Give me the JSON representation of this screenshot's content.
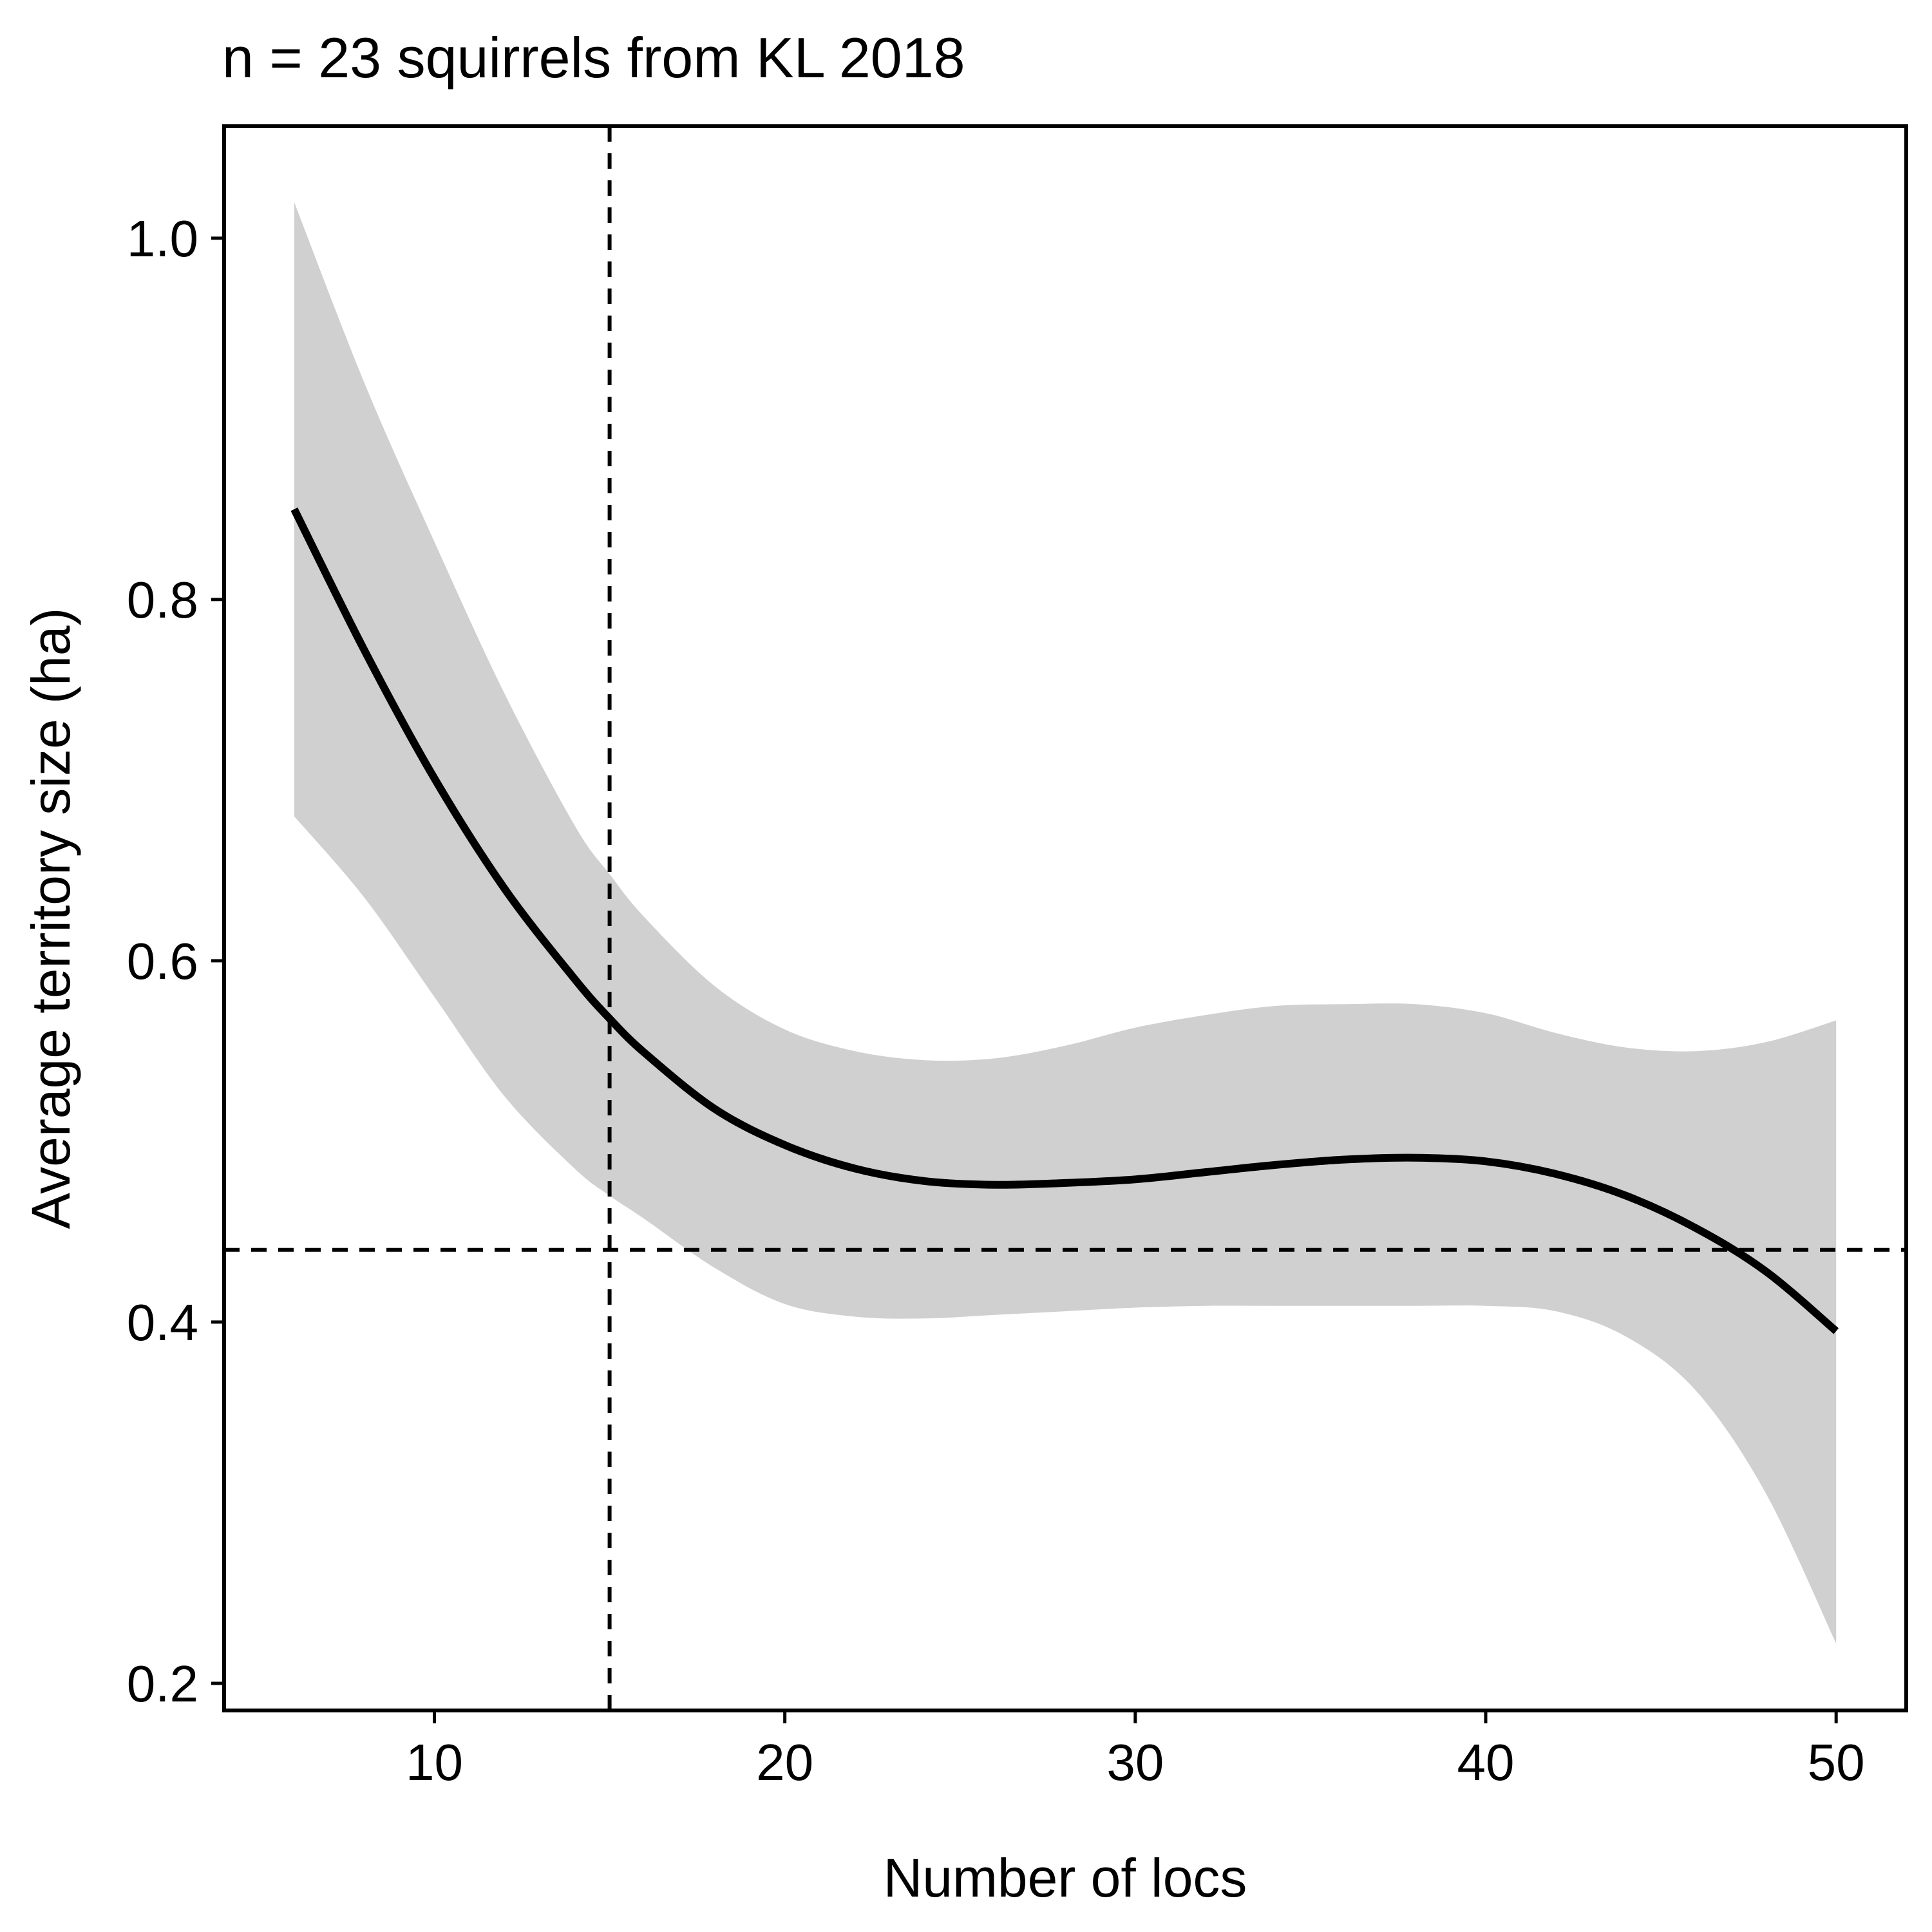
{
  "chart_data": {
    "type": "line",
    "title": "n = 23 squirrels from KL 2018",
    "xlabel": "Number of locs",
    "ylabel": "Average territory size (ha)",
    "xlim": [
      4,
      52
    ],
    "ylim": [
      0.185,
      1.062
    ],
    "x_ticks": [
      10,
      20,
      30,
      40,
      50
    ],
    "y_ticks": [
      0.2,
      0.4,
      0.6,
      0.8,
      1.0
    ],
    "x_tick_labels": [
      "10",
      "20",
      "30",
      "40",
      "50"
    ],
    "y_tick_labels": [
      "0.2",
      "0.4",
      "0.6",
      "0.8",
      "1.0"
    ],
    "grid": false,
    "legend": "none",
    "series": [
      {
        "x": [
          6,
          8,
          10,
          12,
          14,
          15,
          16,
          18,
          20,
          22,
          24,
          26,
          28,
          30,
          32,
          34,
          36,
          38,
          40,
          42,
          44,
          46,
          48,
          50
        ],
        "y": [
          0.85,
          0.772,
          0.701,
          0.64,
          0.59,
          0.568,
          0.549,
          0.518,
          0.498,
          0.485,
          0.478,
          0.476,
          0.477,
          0.479,
          0.483,
          0.487,
          0.49,
          0.491,
          0.489,
          0.482,
          0.47,
          0.452,
          0.428,
          0.395
        ],
        "ci_lower": [
          0.68,
          0.635,
          0.58,
          0.525,
          0.485,
          0.47,
          0.457,
          0.43,
          0.41,
          0.403,
          0.402,
          0.404,
          0.406,
          0.408,
          0.409,
          0.409,
          0.409,
          0.409,
          0.409,
          0.406,
          0.392,
          0.362,
          0.305,
          0.222
        ],
        "ci_upper": [
          1.02,
          0.92,
          0.832,
          0.748,
          0.675,
          0.648,
          0.624,
          0.586,
          0.562,
          0.55,
          0.545,
          0.546,
          0.553,
          0.563,
          0.57,
          0.575,
          0.576,
          0.576,
          0.571,
          0.56,
          0.552,
          0.55,
          0.555,
          0.567
        ]
      }
    ],
    "reference_lines": [
      {
        "orientation": "vertical",
        "x": 15,
        "style": "dashed"
      },
      {
        "orientation": "horizontal",
        "y": 0.44,
        "style": "dashed"
      }
    ],
    "colors": {
      "line": "#000000",
      "ribbon": "#d0d0d0",
      "reference": "#000000",
      "axis": "#000000"
    }
  }
}
